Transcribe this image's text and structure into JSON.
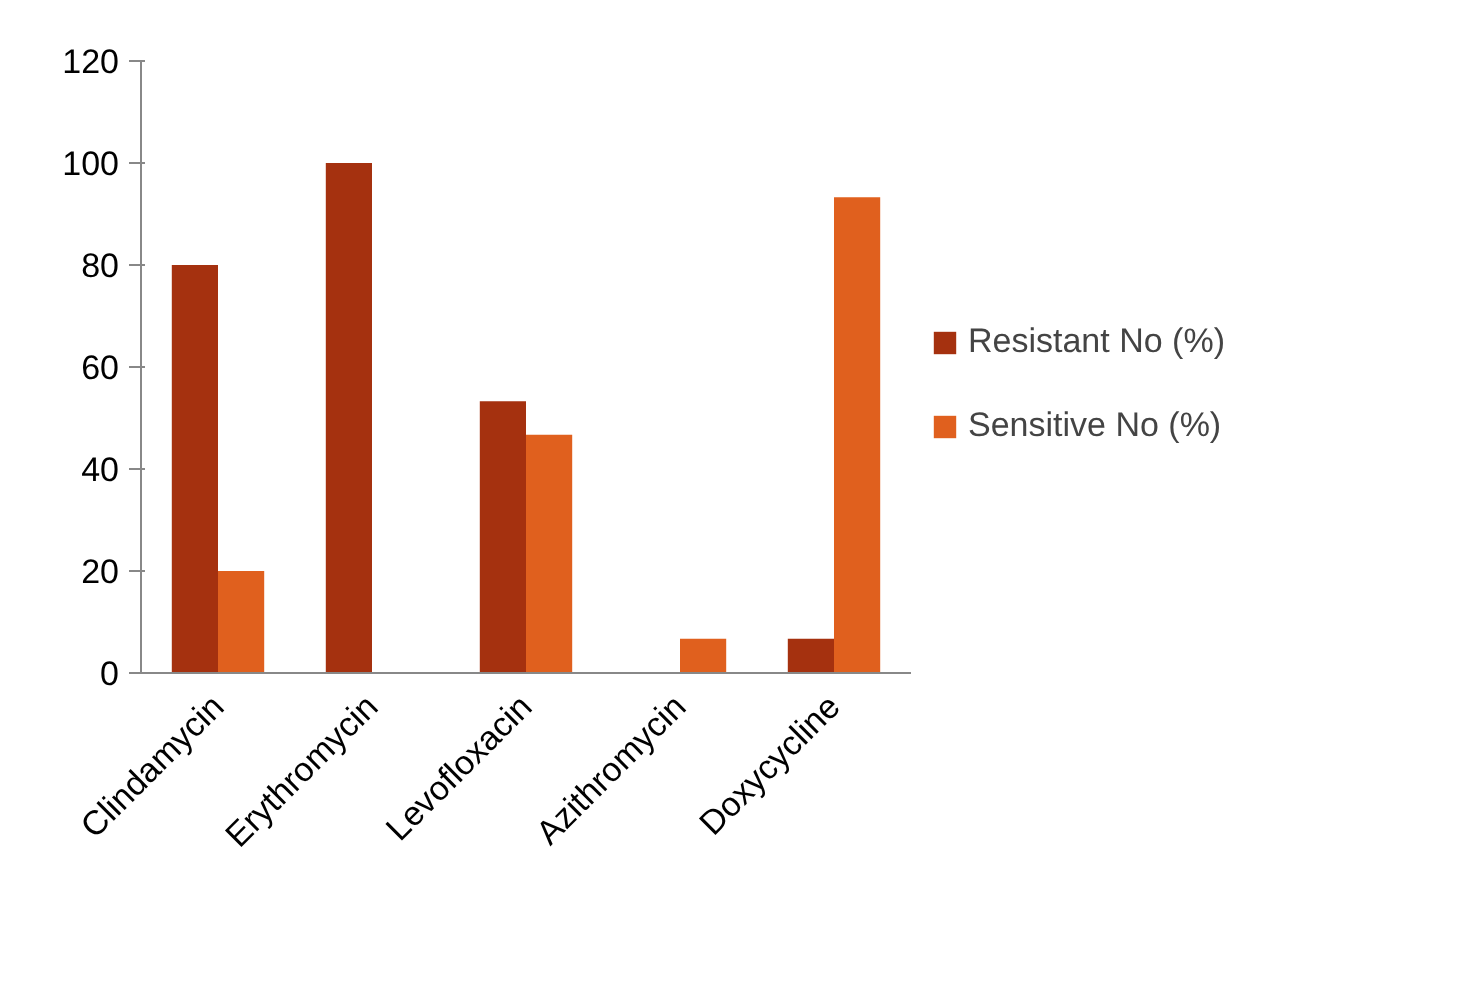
{
  "chart_data": {
    "type": "bar",
    "categories": [
      "Clindamycin",
      "Erythromycin",
      "Levofloxacin",
      "Azithromycin",
      "Doxycycline"
    ],
    "series": [
      {
        "name": "Resistant No (%)",
        "color": "#a5310f",
        "values": [
          80,
          100,
          53.3,
          0,
          6.7
        ]
      },
      {
        "name": "Sensitive No (%)",
        "color": "#e0601e",
        "values": [
          20,
          0,
          46.7,
          6.7,
          93.3
        ]
      }
    ],
    "ylim": [
      0,
      120
    ],
    "yticks": [
      0,
      20,
      40,
      60,
      80,
      100,
      120
    ],
    "grid": false,
    "legend": "right"
  }
}
